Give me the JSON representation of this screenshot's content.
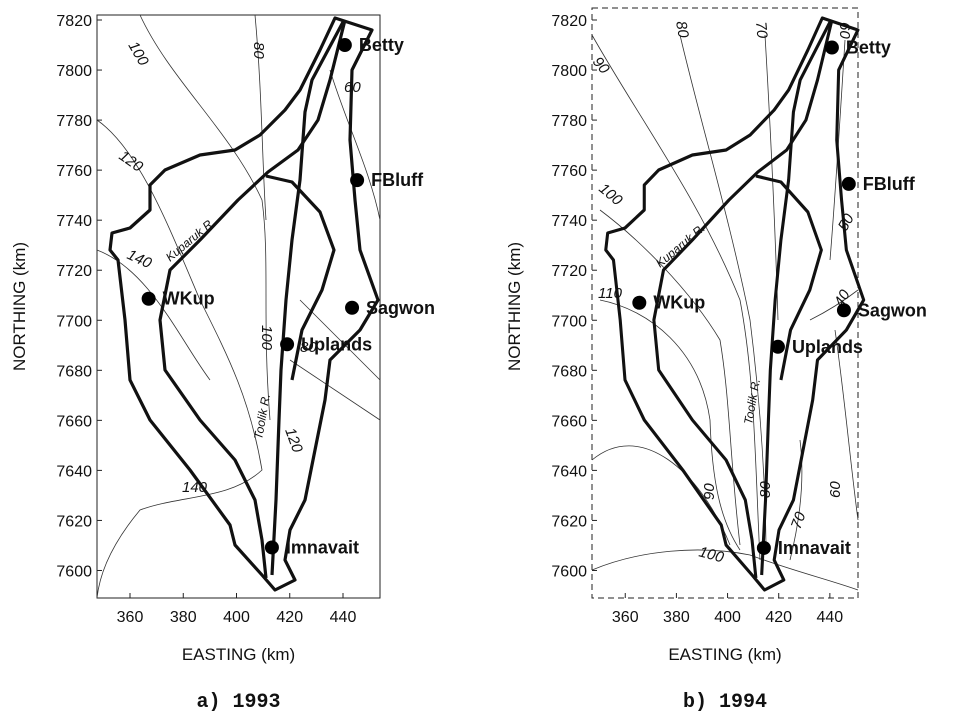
{
  "panels": [
    {
      "caption": "a)  1993",
      "xlabel": "EASTING (km)",
      "ylabel": "NORTHING (km)",
      "xlim": [
        347.6,
        453.9
      ],
      "ylim": [
        7589,
        7822
      ],
      "xticks": [
        360,
        380,
        400,
        420,
        440
      ],
      "yticks": [
        7600,
        7620,
        7640,
        7660,
        7680,
        7700,
        7720,
        7740,
        7760,
        7780,
        7800,
        7820
      ],
      "stations": [
        {
          "name": "Betty",
          "x": 440.7,
          "y": 7810
        },
        {
          "name": "FBluff",
          "x": 445.3,
          "y": 7756
        },
        {
          "name": "Sagwon",
          "x": 443.4,
          "y": 7705
        },
        {
          "name": "Uplands",
          "x": 419,
          "y": 7690.4
        },
        {
          "name": "WKup",
          "x": 367,
          "y": 7708.6
        },
        {
          "name": "Imnavait",
          "x": 413.3,
          "y": 7609.2
        }
      ],
      "contour_labels": [
        100,
        80,
        60,
        120,
        140,
        100,
        80,
        120,
        140
      ],
      "river_labels": [
        "Kuparuk R.",
        "Toolik R."
      ]
    },
    {
      "caption": "b)  1994",
      "xlabel": "EASTING (km)",
      "ylabel": "NORTHING (km)",
      "xlim": [
        347,
        451
      ],
      "ylim": [
        7589,
        7822
      ],
      "xticks": [
        360,
        380,
        400,
        420,
        440
      ],
      "yticks": [
        7600,
        7620,
        7640,
        7660,
        7680,
        7700,
        7720,
        7740,
        7760,
        7780,
        7800,
        7820
      ],
      "stations": [
        {
          "name": "Betty",
          "x": 440.8,
          "y": 7809
        },
        {
          "name": "FBluff",
          "x": 447.4,
          "y": 7754.5
        },
        {
          "name": "Sagwon",
          "x": 445.5,
          "y": 7704
        },
        {
          "name": "Uplands",
          "x": 419.7,
          "y": 7689.4
        },
        {
          "name": "WKup",
          "x": 365.5,
          "y": 7707
        },
        {
          "name": "Imnavait",
          "x": 414.2,
          "y": 7609
        }
      ],
      "contour_labels": [
        90,
        80,
        70,
        60,
        100,
        50,
        110,
        40,
        90,
        80,
        70,
        60,
        100
      ],
      "river_labels": [
        "Kuparuk R.",
        "Toolik R."
      ]
    }
  ]
}
